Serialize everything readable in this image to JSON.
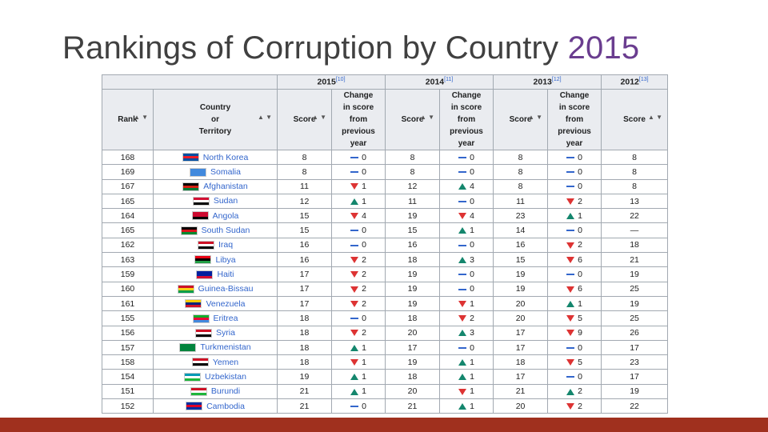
{
  "slide": {
    "title_text": "Rankings of Corruption by Country",
    "title_year": "2015",
    "accent_color": "#a0301e",
    "year_color": "#6a3d8f"
  },
  "table": {
    "years": [
      {
        "label": "2015",
        "ref": "[10]"
      },
      {
        "label": "2014",
        "ref": "[11]"
      },
      {
        "label": "2013",
        "ref": "[12]"
      },
      {
        "label": "2012",
        "ref": "[13]"
      }
    ],
    "headers": {
      "rank": "Rank",
      "country": [
        "Country",
        "or",
        "Territory"
      ],
      "score": "Score",
      "change": [
        "Change",
        "in score",
        "from",
        "previous",
        "year"
      ]
    },
    "rows": [
      {
        "rank": "168",
        "country": "North Korea",
        "flag": [
          "#024fa2",
          "#ed1c27",
          "#024fa2"
        ],
        "s15": "8",
        "c15": {
          "dir": "none",
          "v": "0"
        },
        "s14": "8",
        "c14": {
          "dir": "none",
          "v": "0"
        },
        "s13": "8",
        "c13": {
          "dir": "none",
          "v": "0"
        },
        "s12": "8"
      },
      {
        "rank": "169",
        "country": "Somalia",
        "flag": [
          "#4189dd",
          "#4189dd",
          "#4189dd"
        ],
        "s15": "8",
        "c15": {
          "dir": "none",
          "v": "0"
        },
        "s14": "8",
        "c14": {
          "dir": "none",
          "v": "0"
        },
        "s13": "8",
        "c13": {
          "dir": "none",
          "v": "0"
        },
        "s12": "8"
      },
      {
        "rank": "167",
        "country": "Afghanistan",
        "flag": [
          "#000000",
          "#d32011",
          "#007a36"
        ],
        "s15": "11",
        "c15": {
          "dir": "down",
          "v": "1"
        },
        "s14": "12",
        "c14": {
          "dir": "up",
          "v": "4"
        },
        "s13": "8",
        "c13": {
          "dir": "none",
          "v": "0"
        },
        "s12": "8"
      },
      {
        "rank": "165",
        "country": "Sudan",
        "flag": [
          "#d21034",
          "#ffffff",
          "#000000"
        ],
        "s15": "12",
        "c15": {
          "dir": "up",
          "v": "1"
        },
        "s14": "11",
        "c14": {
          "dir": "none",
          "v": "0"
        },
        "s13": "11",
        "c13": {
          "dir": "down",
          "v": "2"
        },
        "s12": "13"
      },
      {
        "rank": "164",
        "country": "Angola",
        "flag": [
          "#cc092f",
          "#cc092f",
          "#000000"
        ],
        "s15": "15",
        "c15": {
          "dir": "down",
          "v": "4"
        },
        "s14": "19",
        "c14": {
          "dir": "down",
          "v": "4"
        },
        "s13": "23",
        "c13": {
          "dir": "up",
          "v": "1"
        },
        "s12": "22"
      },
      {
        "rank": "165",
        "country": "South Sudan",
        "flag": [
          "#000000",
          "#da121a",
          "#078930"
        ],
        "s15": "15",
        "c15": {
          "dir": "none",
          "v": "0"
        },
        "s14": "15",
        "c14": {
          "dir": "up",
          "v": "1"
        },
        "s13": "14",
        "c13": {
          "dir": "none",
          "v": "0"
        },
        "s12": "—"
      },
      {
        "rank": "162",
        "country": "Iraq",
        "flag": [
          "#ce1126",
          "#ffffff",
          "#000000"
        ],
        "s15": "16",
        "c15": {
          "dir": "none",
          "v": "0"
        },
        "s14": "16",
        "c14": {
          "dir": "none",
          "v": "0"
        },
        "s13": "16",
        "c13": {
          "dir": "down",
          "v": "2"
        },
        "s12": "18"
      },
      {
        "rank": "163",
        "country": "Libya",
        "flag": [
          "#e70013",
          "#000000",
          "#239e46"
        ],
        "s15": "16",
        "c15": {
          "dir": "down",
          "v": "2"
        },
        "s14": "18",
        "c14": {
          "dir": "up",
          "v": "3"
        },
        "s13": "15",
        "c13": {
          "dir": "down",
          "v": "6"
        },
        "s12": "21"
      },
      {
        "rank": "159",
        "country": "Haiti",
        "flag": [
          "#00209f",
          "#00209f",
          "#d21034"
        ],
        "s15": "17",
        "c15": {
          "dir": "down",
          "v": "2"
        },
        "s14": "19",
        "c14": {
          "dir": "none",
          "v": "0"
        },
        "s13": "19",
        "c13": {
          "dir": "none",
          "v": "0"
        },
        "s12": "19"
      },
      {
        "rank": "160",
        "country": "Guinea-Bissau",
        "flag": [
          "#ce1126",
          "#fcd116",
          "#009e49"
        ],
        "s15": "17",
        "c15": {
          "dir": "down",
          "v": "2"
        },
        "s14": "19",
        "c14": {
          "dir": "none",
          "v": "0"
        },
        "s13": "19",
        "c13": {
          "dir": "down",
          "v": "6"
        },
        "s12": "25"
      },
      {
        "rank": "161",
        "country": "Venezuela",
        "flag": [
          "#ffcc00",
          "#00247d",
          "#cf142b"
        ],
        "s15": "17",
        "c15": {
          "dir": "down",
          "v": "2"
        },
        "s14": "19",
        "c14": {
          "dir": "down",
          "v": "1"
        },
        "s13": "20",
        "c13": {
          "dir": "up",
          "v": "1"
        },
        "s12": "19"
      },
      {
        "rank": "155",
        "country": "Eritrea",
        "flag": [
          "#12ad2b",
          "#ea0437",
          "#4189dd"
        ],
        "s15": "18",
        "c15": {
          "dir": "none",
          "v": "0"
        },
        "s14": "18",
        "c14": {
          "dir": "down",
          "v": "2"
        },
        "s13": "20",
        "c13": {
          "dir": "down",
          "v": "5"
        },
        "s12": "25"
      },
      {
        "rank": "156",
        "country": "Syria",
        "flag": [
          "#ce1126",
          "#ffffff",
          "#000000"
        ],
        "s15": "18",
        "c15": {
          "dir": "down",
          "v": "2"
        },
        "s14": "20",
        "c14": {
          "dir": "up",
          "v": "3"
        },
        "s13": "17",
        "c13": {
          "dir": "down",
          "v": "9"
        },
        "s12": "26"
      },
      {
        "rank": "157",
        "country": "Turkmenistan",
        "flag": [
          "#00843d",
          "#00843d",
          "#00843d"
        ],
        "s15": "18",
        "c15": {
          "dir": "up",
          "v": "1"
        },
        "s14": "17",
        "c14": {
          "dir": "none",
          "v": "0"
        },
        "s13": "17",
        "c13": {
          "dir": "none",
          "v": "0"
        },
        "s12": "17"
      },
      {
        "rank": "158",
        "country": "Yemen",
        "flag": [
          "#ce1126",
          "#ffffff",
          "#000000"
        ],
        "s15": "18",
        "c15": {
          "dir": "down",
          "v": "1"
        },
        "s14": "19",
        "c14": {
          "dir": "up",
          "v": "1"
        },
        "s13": "18",
        "c13": {
          "dir": "down",
          "v": "5"
        },
        "s12": "23"
      },
      {
        "rank": "154",
        "country": "Uzbekistan",
        "flag": [
          "#0099b5",
          "#ffffff",
          "#1eb53a"
        ],
        "s15": "19",
        "c15": {
          "dir": "up",
          "v": "1"
        },
        "s14": "18",
        "c14": {
          "dir": "up",
          "v": "1"
        },
        "s13": "17",
        "c13": {
          "dir": "none",
          "v": "0"
        },
        "s12": "17"
      },
      {
        "rank": "151",
        "country": "Burundi",
        "flag": [
          "#ce1126",
          "#ffffff",
          "#1eb53a"
        ],
        "s15": "21",
        "c15": {
          "dir": "up",
          "v": "1"
        },
        "s14": "20",
        "c14": {
          "dir": "down",
          "v": "1"
        },
        "s13": "21",
        "c13": {
          "dir": "up",
          "v": "2"
        },
        "s12": "19"
      },
      {
        "rank": "152",
        "country": "Cambodia",
        "flag": [
          "#032ea1",
          "#e00025",
          "#032ea1"
        ],
        "s15": "21",
        "c15": {
          "dir": "none",
          "v": "0"
        },
        "s14": "21",
        "c14": {
          "dir": "up",
          "v": "1"
        },
        "s13": "20",
        "c13": {
          "dir": "down",
          "v": "2"
        },
        "s12": "22"
      }
    ]
  }
}
